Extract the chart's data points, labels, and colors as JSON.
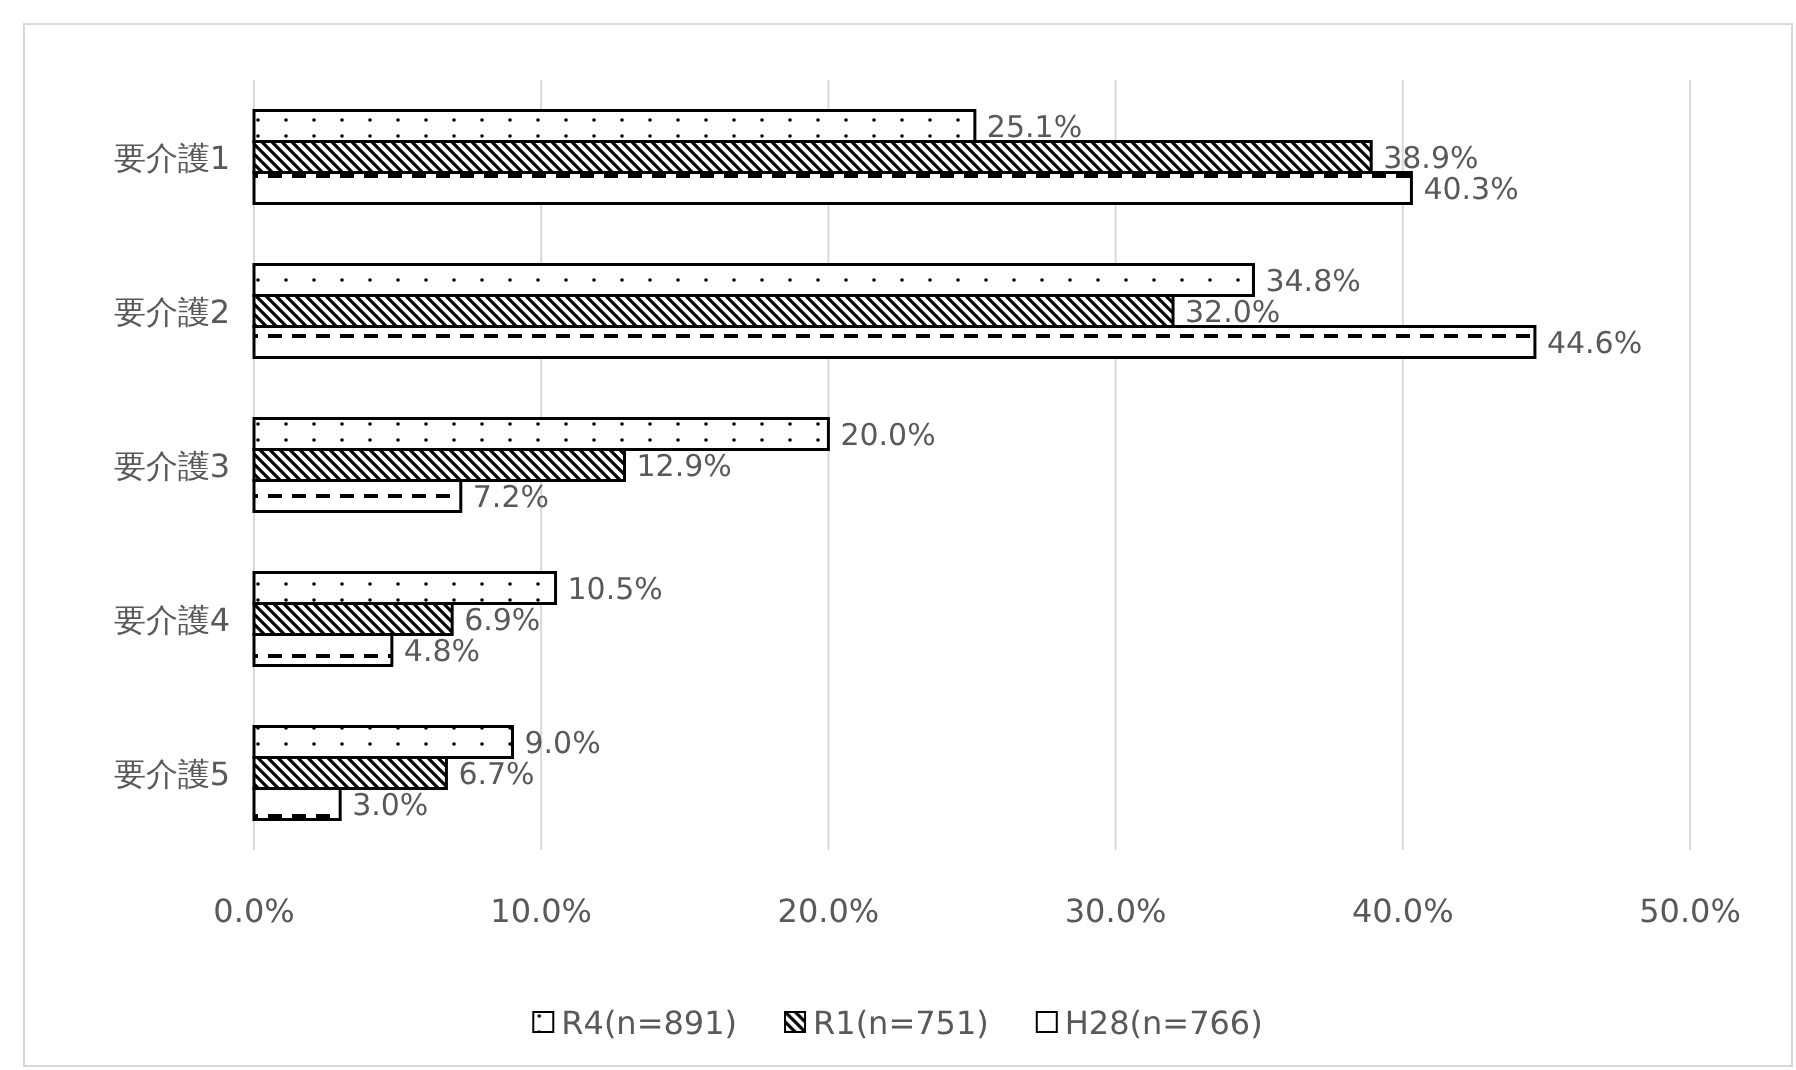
{
  "chart_data": {
    "type": "bar",
    "orientation": "horizontal",
    "categories": [
      "要介護1",
      "要介護2",
      "要介護3",
      "要介護4",
      "要介護5"
    ],
    "series": [
      {
        "name": "R4(n=891)",
        "color": "#000000",
        "values": [
          25.1,
          34.8,
          20.0,
          10.5,
          9.0
        ]
      },
      {
        "name": "R1(n=751)",
        "color": "#000000",
        "values": [
          38.9,
          32.0,
          12.9,
          6.9,
          6.7
        ]
      },
      {
        "name": "H28(n=766)",
        "color": "#000000",
        "values": [
          40.3,
          44.6,
          7.2,
          4.8,
          3.0
        ]
      }
    ],
    "xlim": [
      0,
      50
    ],
    "xticks": [
      {
        "value": 0,
        "label": "0.0%"
      },
      {
        "value": 10,
        "label": "10.0%"
      },
      {
        "value": 20,
        "label": "20.0%"
      },
      {
        "value": 30,
        "label": "30.0%"
      },
      {
        "value": 40,
        "label": "40.0%"
      },
      {
        "value": 50,
        "label": "50.0%"
      }
    ],
    "grid": "x",
    "legend": "bottom",
    "value_labels": [
      [
        "25.1%",
        "34.8%",
        "20.0%",
        "10.5%",
        "9.0%"
      ],
      [
        "38.9%",
        "32.0%",
        "12.9%",
        "6.9%",
        "6.7%"
      ],
      [
        "40.3%",
        "44.6%",
        "7.2%",
        "4.8%",
        "3.0%"
      ]
    ]
  }
}
